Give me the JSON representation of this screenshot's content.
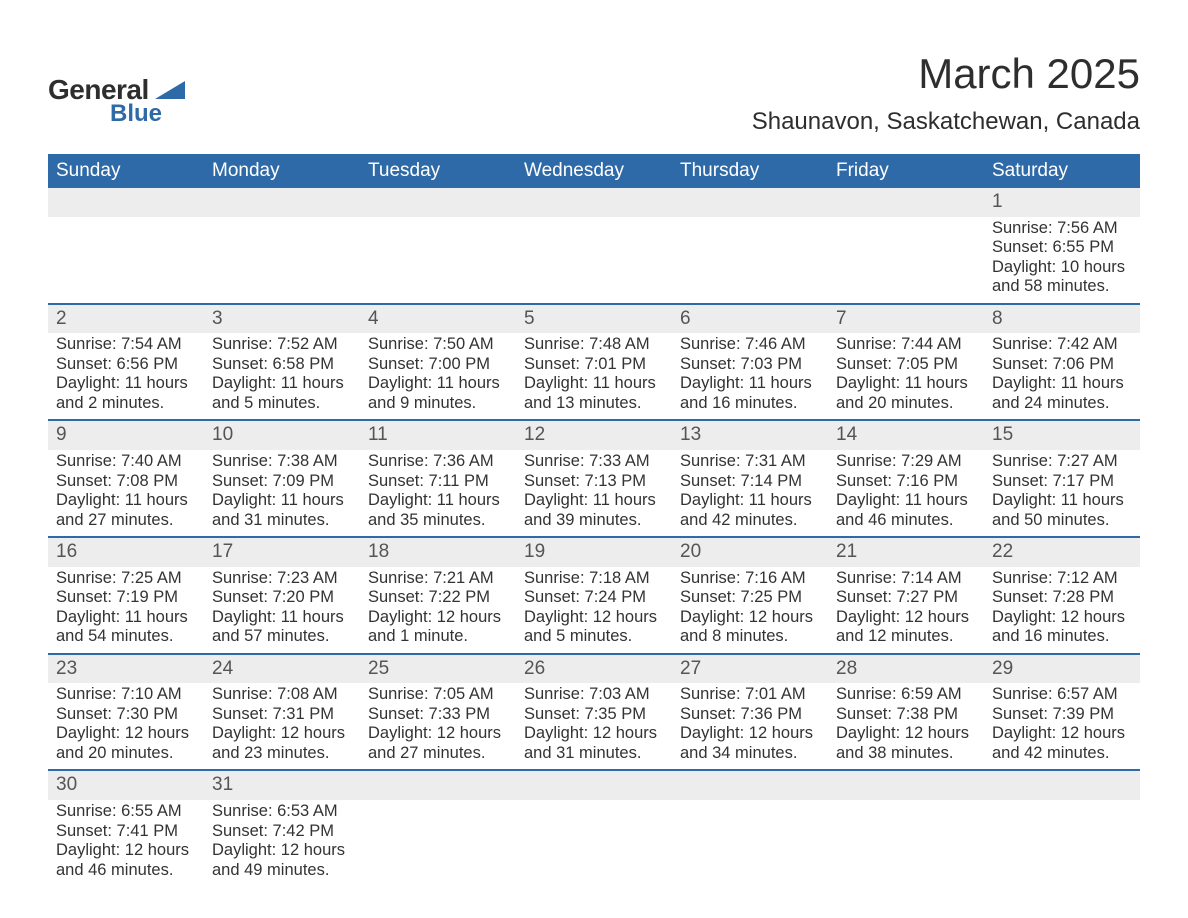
{
  "logo": {
    "word1": "General",
    "word2": "Blue",
    "triangle_color": "#2f6aa8"
  },
  "title": {
    "month": "March 2025",
    "location": "Shaunavon, Saskatchewan, Canada"
  },
  "theme": {
    "header_bg": "#2f6aa8",
    "header_text": "#ffffff",
    "daynum_bg": "#ededed",
    "border_color": "#2f6aa8",
    "text_color": "#333333",
    "fontsize_title": 42,
    "fontsize_location": 24,
    "fontsize_header": 19,
    "fontsize_daynum": 19,
    "fontsize_body": 16.5
  },
  "weekdays": [
    "Sunday",
    "Monday",
    "Tuesday",
    "Wednesday",
    "Thursday",
    "Friday",
    "Saturday"
  ],
  "weeks": [
    [
      null,
      null,
      null,
      null,
      null,
      null,
      {
        "n": "1",
        "sunrise": "Sunrise: 7:56 AM",
        "sunset": "Sunset: 6:55 PM",
        "dl1": "Daylight: 10 hours",
        "dl2": "and 58 minutes."
      }
    ],
    [
      {
        "n": "2",
        "sunrise": "Sunrise: 7:54 AM",
        "sunset": "Sunset: 6:56 PM",
        "dl1": "Daylight: 11 hours",
        "dl2": "and 2 minutes."
      },
      {
        "n": "3",
        "sunrise": "Sunrise: 7:52 AM",
        "sunset": "Sunset: 6:58 PM",
        "dl1": "Daylight: 11 hours",
        "dl2": "and 5 minutes."
      },
      {
        "n": "4",
        "sunrise": "Sunrise: 7:50 AM",
        "sunset": "Sunset: 7:00 PM",
        "dl1": "Daylight: 11 hours",
        "dl2": "and 9 minutes."
      },
      {
        "n": "5",
        "sunrise": "Sunrise: 7:48 AM",
        "sunset": "Sunset: 7:01 PM",
        "dl1": "Daylight: 11 hours",
        "dl2": "and 13 minutes."
      },
      {
        "n": "6",
        "sunrise": "Sunrise: 7:46 AM",
        "sunset": "Sunset: 7:03 PM",
        "dl1": "Daylight: 11 hours",
        "dl2": "and 16 minutes."
      },
      {
        "n": "7",
        "sunrise": "Sunrise: 7:44 AM",
        "sunset": "Sunset: 7:05 PM",
        "dl1": "Daylight: 11 hours",
        "dl2": "and 20 minutes."
      },
      {
        "n": "8",
        "sunrise": "Sunrise: 7:42 AM",
        "sunset": "Sunset: 7:06 PM",
        "dl1": "Daylight: 11 hours",
        "dl2": "and 24 minutes."
      }
    ],
    [
      {
        "n": "9",
        "sunrise": "Sunrise: 7:40 AM",
        "sunset": "Sunset: 7:08 PM",
        "dl1": "Daylight: 11 hours",
        "dl2": "and 27 minutes."
      },
      {
        "n": "10",
        "sunrise": "Sunrise: 7:38 AM",
        "sunset": "Sunset: 7:09 PM",
        "dl1": "Daylight: 11 hours",
        "dl2": "and 31 minutes."
      },
      {
        "n": "11",
        "sunrise": "Sunrise: 7:36 AM",
        "sunset": "Sunset: 7:11 PM",
        "dl1": "Daylight: 11 hours",
        "dl2": "and 35 minutes."
      },
      {
        "n": "12",
        "sunrise": "Sunrise: 7:33 AM",
        "sunset": "Sunset: 7:13 PM",
        "dl1": "Daylight: 11 hours",
        "dl2": "and 39 minutes."
      },
      {
        "n": "13",
        "sunrise": "Sunrise: 7:31 AM",
        "sunset": "Sunset: 7:14 PM",
        "dl1": "Daylight: 11 hours",
        "dl2": "and 42 minutes."
      },
      {
        "n": "14",
        "sunrise": "Sunrise: 7:29 AM",
        "sunset": "Sunset: 7:16 PM",
        "dl1": "Daylight: 11 hours",
        "dl2": "and 46 minutes."
      },
      {
        "n": "15",
        "sunrise": "Sunrise: 7:27 AM",
        "sunset": "Sunset: 7:17 PM",
        "dl1": "Daylight: 11 hours",
        "dl2": "and 50 minutes."
      }
    ],
    [
      {
        "n": "16",
        "sunrise": "Sunrise: 7:25 AM",
        "sunset": "Sunset: 7:19 PM",
        "dl1": "Daylight: 11 hours",
        "dl2": "and 54 minutes."
      },
      {
        "n": "17",
        "sunrise": "Sunrise: 7:23 AM",
        "sunset": "Sunset: 7:20 PM",
        "dl1": "Daylight: 11 hours",
        "dl2": "and 57 minutes."
      },
      {
        "n": "18",
        "sunrise": "Sunrise: 7:21 AM",
        "sunset": "Sunset: 7:22 PM",
        "dl1": "Daylight: 12 hours",
        "dl2": "and 1 minute."
      },
      {
        "n": "19",
        "sunrise": "Sunrise: 7:18 AM",
        "sunset": "Sunset: 7:24 PM",
        "dl1": "Daylight: 12 hours",
        "dl2": "and 5 minutes."
      },
      {
        "n": "20",
        "sunrise": "Sunrise: 7:16 AM",
        "sunset": "Sunset: 7:25 PM",
        "dl1": "Daylight: 12 hours",
        "dl2": "and 8 minutes."
      },
      {
        "n": "21",
        "sunrise": "Sunrise: 7:14 AM",
        "sunset": "Sunset: 7:27 PM",
        "dl1": "Daylight: 12 hours",
        "dl2": "and 12 minutes."
      },
      {
        "n": "22",
        "sunrise": "Sunrise: 7:12 AM",
        "sunset": "Sunset: 7:28 PM",
        "dl1": "Daylight: 12 hours",
        "dl2": "and 16 minutes."
      }
    ],
    [
      {
        "n": "23",
        "sunrise": "Sunrise: 7:10 AM",
        "sunset": "Sunset: 7:30 PM",
        "dl1": "Daylight: 12 hours",
        "dl2": "and 20 minutes."
      },
      {
        "n": "24",
        "sunrise": "Sunrise: 7:08 AM",
        "sunset": "Sunset: 7:31 PM",
        "dl1": "Daylight: 12 hours",
        "dl2": "and 23 minutes."
      },
      {
        "n": "25",
        "sunrise": "Sunrise: 7:05 AM",
        "sunset": "Sunset: 7:33 PM",
        "dl1": "Daylight: 12 hours",
        "dl2": "and 27 minutes."
      },
      {
        "n": "26",
        "sunrise": "Sunrise: 7:03 AM",
        "sunset": "Sunset: 7:35 PM",
        "dl1": "Daylight: 12 hours",
        "dl2": "and 31 minutes."
      },
      {
        "n": "27",
        "sunrise": "Sunrise: 7:01 AM",
        "sunset": "Sunset: 7:36 PM",
        "dl1": "Daylight: 12 hours",
        "dl2": "and 34 minutes."
      },
      {
        "n": "28",
        "sunrise": "Sunrise: 6:59 AM",
        "sunset": "Sunset: 7:38 PM",
        "dl1": "Daylight: 12 hours",
        "dl2": "and 38 minutes."
      },
      {
        "n": "29",
        "sunrise": "Sunrise: 6:57 AM",
        "sunset": "Sunset: 7:39 PM",
        "dl1": "Daylight: 12 hours",
        "dl2": "and 42 minutes."
      }
    ],
    [
      {
        "n": "30",
        "sunrise": "Sunrise: 6:55 AM",
        "sunset": "Sunset: 7:41 PM",
        "dl1": "Daylight: 12 hours",
        "dl2": "and 46 minutes."
      },
      {
        "n": "31",
        "sunrise": "Sunrise: 6:53 AM",
        "sunset": "Sunset: 7:42 PM",
        "dl1": "Daylight: 12 hours",
        "dl2": "and 49 minutes."
      },
      null,
      null,
      null,
      null,
      null
    ]
  ]
}
